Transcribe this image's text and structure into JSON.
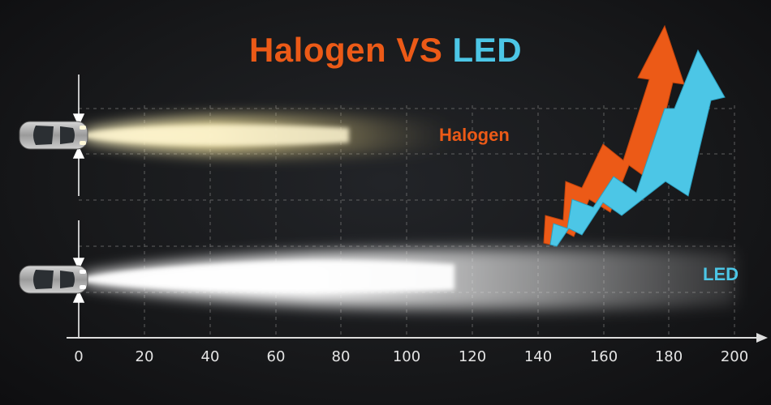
{
  "title": {
    "part1": "Halogen VS",
    "part2": "LED"
  },
  "labels": {
    "halogen": "Halogen",
    "led": "LED"
  },
  "axis": {
    "ticks": [
      "0",
      "20",
      "40",
      "60",
      "80",
      "100",
      "120",
      "140",
      "160",
      "180",
      "200"
    ]
  },
  "beams": [
    {
      "name": "Halogen",
      "reach": 110,
      "color": "#f3e4a2"
    },
    {
      "name": "LED",
      "reach": 200,
      "color": "#ffffff"
    }
  ],
  "colors": {
    "halogen": "#ec5a17",
    "led": "#4cc6e6",
    "grid": "#777777",
    "axis": "#dddddd",
    "background": "#1a1a1c"
  },
  "icons": [
    "car-icon",
    "halogen-trend-arrow-icon",
    "led-trend-arrow-icon"
  ]
}
